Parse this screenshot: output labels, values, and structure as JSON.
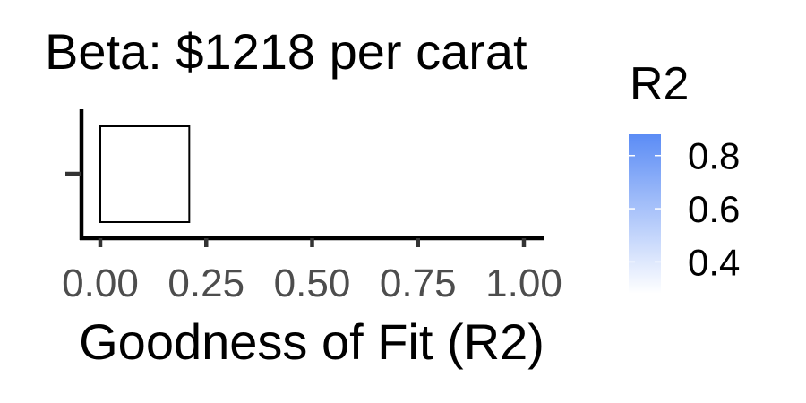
{
  "chart_data": {
    "type": "bar",
    "title": "Beta: $1218 per carat",
    "xlabel": "Goodness of Fit (R2)",
    "ylabel": "",
    "orientation": "horizontal",
    "xlim": [
      0,
      1
    ],
    "x_ticks": [
      "0.00",
      "0.25",
      "0.50",
      "0.75",
      "1.00"
    ],
    "x_tick_values": [
      0,
      0.25,
      0.5,
      0.75,
      1
    ],
    "categories": [
      ""
    ],
    "values": [
      0.21
    ],
    "bar_fill": "#ffffff",
    "bar_outline": "#000000",
    "grid": false,
    "legend": {
      "title": "R2",
      "position": "right",
      "labels": [
        "0.8",
        "0.6",
        "0.4"
      ],
      "label_values": [
        0.8,
        0.6,
        0.4
      ],
      "range": [
        0.28,
        0.88
      ],
      "color_low": "#ffffff",
      "color_high": "#5b8cf5"
    }
  }
}
